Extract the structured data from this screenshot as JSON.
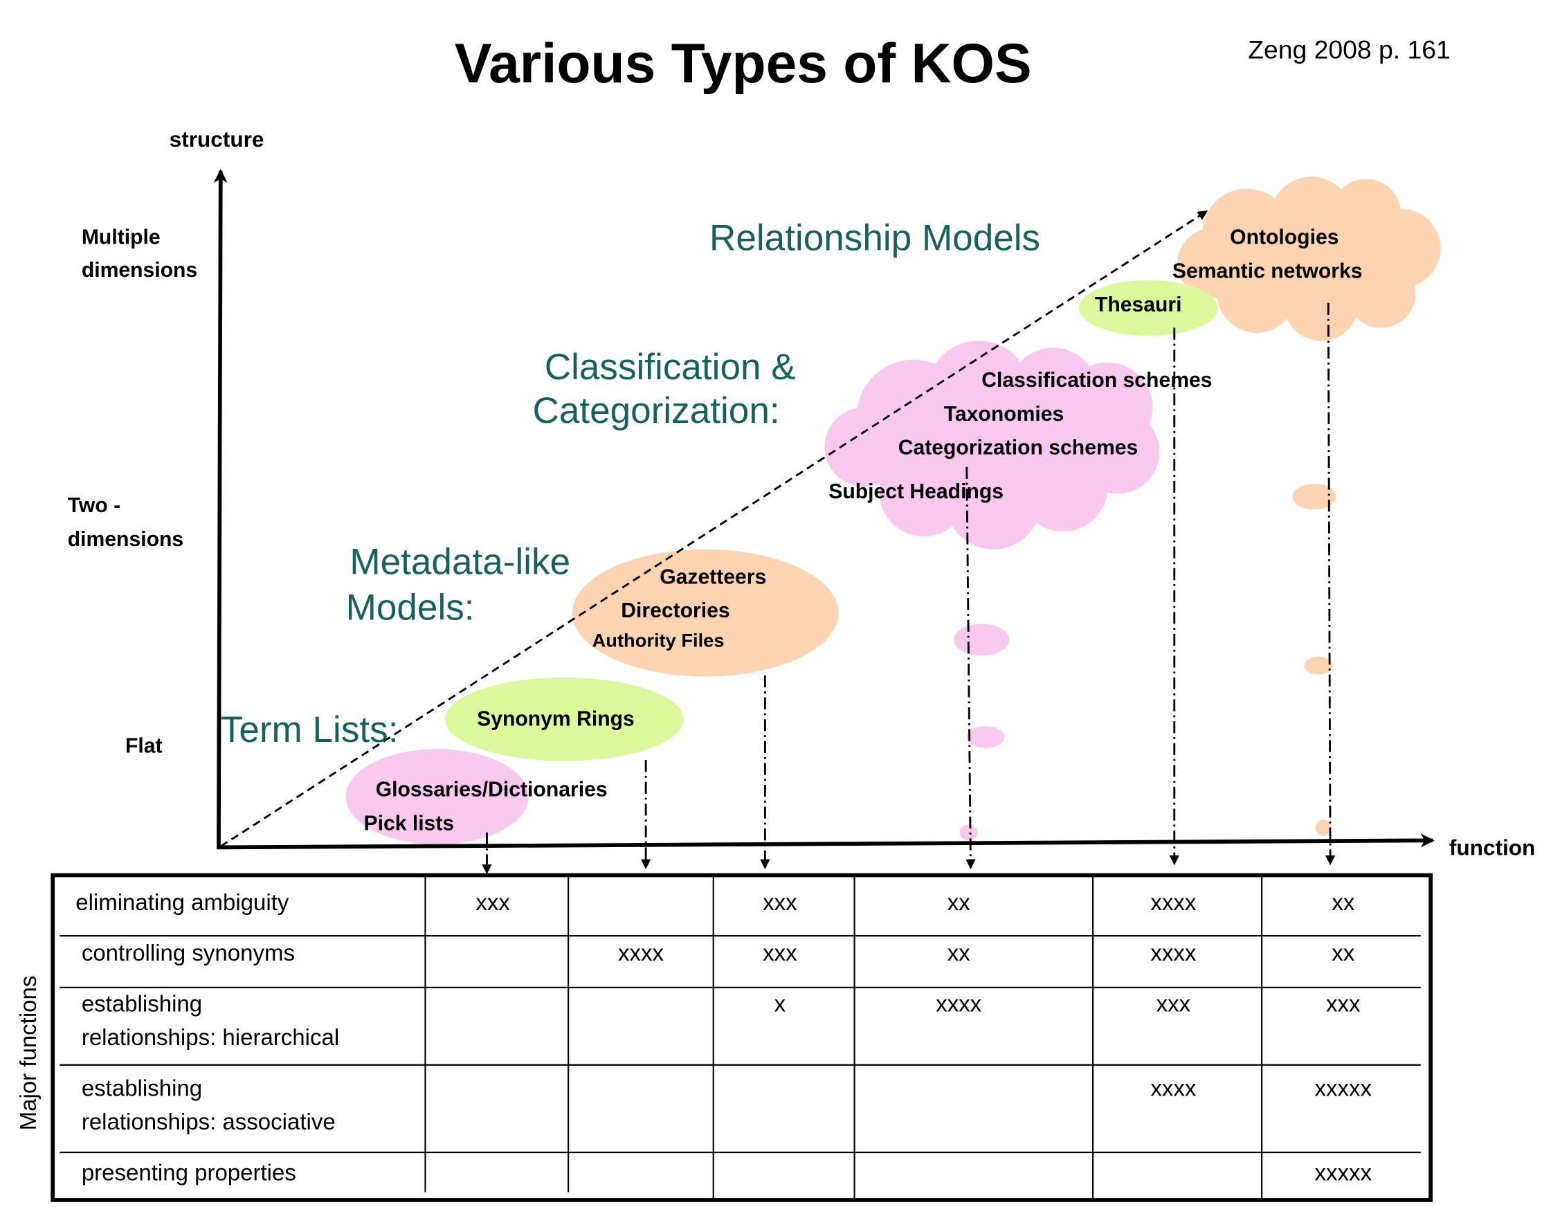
{
  "title": "Various Types of KOS",
  "citation": "Zeng 2008 p. 161",
  "axes": {
    "y": "structure",
    "x": "function"
  },
  "levels": [
    [
      "Multiple",
      "dimensions"
    ],
    [
      "Two -",
      "dimensions"
    ],
    [
      "Flat"
    ]
  ],
  "groups": [
    [
      "Relationship Models"
    ],
    [
      "Classification &",
      "Categorization:"
    ],
    [
      "Metadata-like",
      "Models:"
    ],
    [
      "Term Lists:"
    ]
  ],
  "items": [
    "Glossaries/Dictionaries",
    "Pick lists",
    "Synonym Rings",
    "Gazetteers",
    "Directories",
    "Authority Files",
    "Classification schemes",
    "Taxonomies",
    "Categorization schemes",
    "Subject Headings",
    "Thesauri",
    "Ontologies",
    "Semantic networks"
  ],
  "table": {
    "side_label": "Major functions",
    "rows": [
      {
        "function": [
          "eliminating ambiguity"
        ],
        "cells": [
          "xxx",
          null,
          "xxx",
          "xx",
          "xxxx",
          "xx"
        ]
      },
      {
        "function": [
          "controlling synonyms"
        ],
        "cells": [
          null,
          "xxxx",
          "xxx",
          "xx",
          "xxxx",
          "xx"
        ]
      },
      {
        "function": [
          "establishing",
          "relationships: hierarchical"
        ],
        "cells": [
          null,
          null,
          "x",
          "xxxx",
          "xxx",
          "xxx"
        ]
      },
      {
        "function": [
          "establishing",
          "relationships: associative"
        ],
        "cells": [
          null,
          null,
          null,
          null,
          "xxxx",
          "xxxxx"
        ]
      },
      {
        "function": [
          "presenting properties"
        ],
        "cells": [
          null,
          null,
          null,
          null,
          null,
          "xxxxx"
        ]
      }
    ]
  }
}
